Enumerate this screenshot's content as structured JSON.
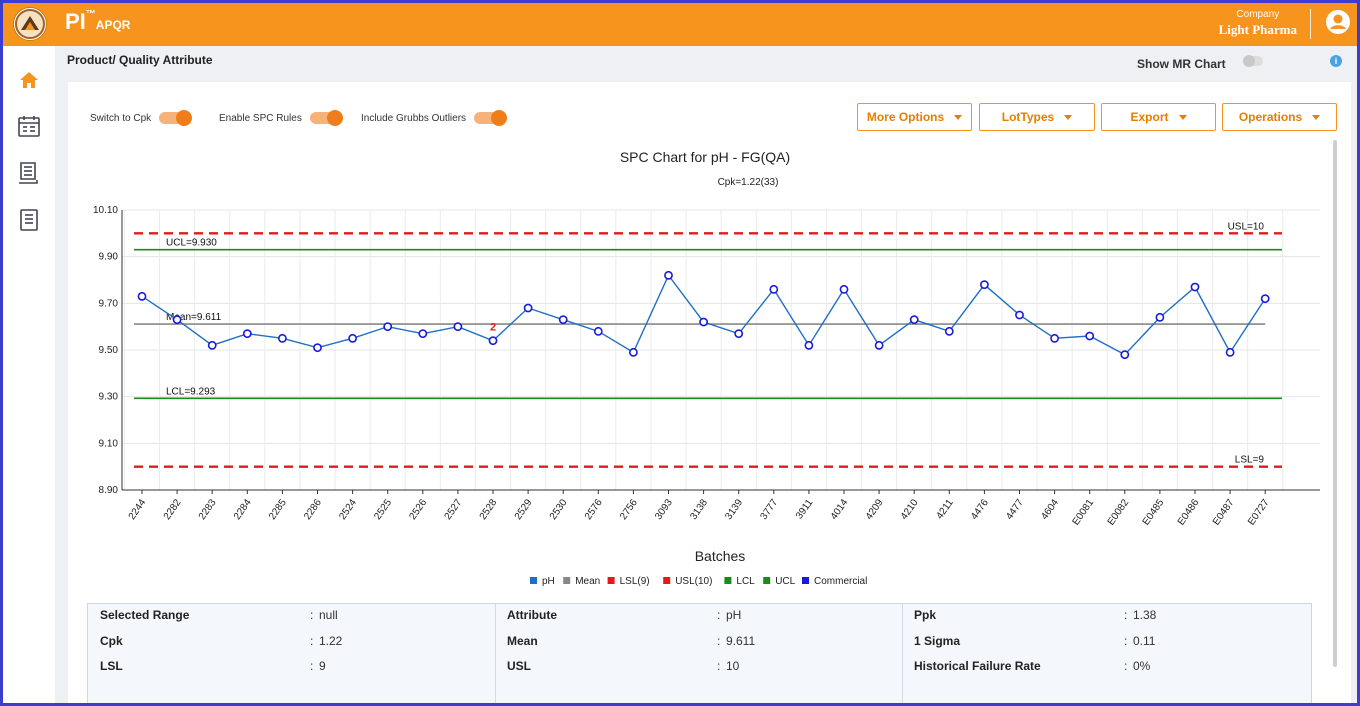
{
  "app": {
    "brand": "PI",
    "brand_tm": "™",
    "brand_sub": "APQR",
    "company_label": "Company",
    "company_name": "Light Pharma"
  },
  "sidebar": {
    "items": [
      {
        "icon": "home-icon"
      },
      {
        "icon": "calendar-icon"
      },
      {
        "icon": "report-icon"
      },
      {
        "icon": "document-icon"
      }
    ]
  },
  "page": {
    "breadcrumb": "Product/ Quality Attribute",
    "show_mr_chart": "Show MR Chart",
    "info": "i"
  },
  "toggles": [
    {
      "label": "Switch to Cpk",
      "on": true
    },
    {
      "label": "Enable SPC Rules",
      "on": true
    },
    {
      "label": "Include Grubbs Outliers",
      "on": true
    }
  ],
  "buttons": [
    "More Options",
    "LotTypes",
    "Export",
    "Operations"
  ],
  "colors": {
    "accent": "#f7941d",
    "series": "#1f6fc4",
    "limit_usl_lsl": "#e31a1a",
    "control": "#1a8a1a",
    "mean": "#888888"
  },
  "chart_data": {
    "type": "line",
    "title": "SPC Chart for pH - FG(QA)",
    "subtitle": "Cpk=1.22(33)",
    "xlabel": "Batches",
    "ylabel": "",
    "ylim": [
      8.9,
      10.1
    ],
    "yticks": [
      "10.10",
      "9.90",
      "9.70",
      "9.50",
      "9.30",
      "9.10",
      "8.90"
    ],
    "categories": [
      "2244",
      "2282",
      "2283",
      "2284",
      "2285",
      "2286",
      "2524",
      "2525",
      "2526",
      "2527",
      "2528",
      "2529",
      "2530",
      "2576",
      "2756",
      "3093",
      "3138",
      "3139",
      "3777",
      "3911",
      "4014",
      "4209",
      "4210",
      "4211",
      "4476",
      "4477",
      "4604",
      "E0081",
      "E0082",
      "E0485",
      "E0486",
      "E0487",
      "E0727"
    ],
    "series": [
      {
        "name": "pH",
        "values": [
          9.73,
          9.63,
          9.52,
          9.57,
          9.55,
          9.51,
          9.55,
          9.6,
          9.57,
          9.6,
          9.54,
          9.68,
          9.63,
          9.58,
          9.49,
          9.82,
          9.62,
          9.57,
          9.76,
          9.52,
          9.76,
          9.52,
          9.63,
          9.58,
          9.78,
          9.65,
          9.55,
          9.56,
          9.48,
          9.64,
          9.77,
          9.49,
          9.72
        ]
      }
    ],
    "lines": [
      {
        "name": "USL",
        "label": "USL=10",
        "value": 10
      },
      {
        "name": "UCL",
        "label": "UCL=9.930",
        "value": 9.93
      },
      {
        "name": "Mean",
        "label": "Mean=9.611",
        "value": 9.611
      },
      {
        "name": "LCL",
        "label": "LCL=9.293",
        "value": 9.293
      },
      {
        "name": "LSL",
        "label": "LSL=9",
        "value": 9
      }
    ],
    "rule_flag": {
      "text": "2",
      "category": "2528"
    },
    "legend": [
      {
        "label": "pH",
        "color": "#1f6fc4"
      },
      {
        "label": "Mean",
        "color": "#888888"
      },
      {
        "label": "LSL(9)",
        "color": "#e31a1a"
      },
      {
        "label": "USL(10)",
        "color": "#e31a1a"
      },
      {
        "label": "LCL",
        "color": "#1a8a1a"
      },
      {
        "label": "UCL",
        "color": "#1a8a1a"
      },
      {
        "label": "Commercial",
        "color": "#1a1ad9"
      }
    ],
    "legend_position": "bottom"
  },
  "stats": [
    [
      {
        "k": "Selected Range",
        "v": "null"
      },
      {
        "k": "Cpk",
        "v": "1.22"
      },
      {
        "k": "LSL",
        "v": "9"
      }
    ],
    [
      {
        "k": "Attribute",
        "v": "pH"
      },
      {
        "k": "Mean",
        "v": "9.611"
      },
      {
        "k": "USL",
        "v": "10"
      }
    ],
    [
      {
        "k": "Ppk",
        "v": "1.38"
      },
      {
        "k": "1 Sigma",
        "v": "0.11"
      },
      {
        "k": "Historical Failure Rate",
        "v": "0%"
      }
    ]
  ],
  "colon": ":"
}
